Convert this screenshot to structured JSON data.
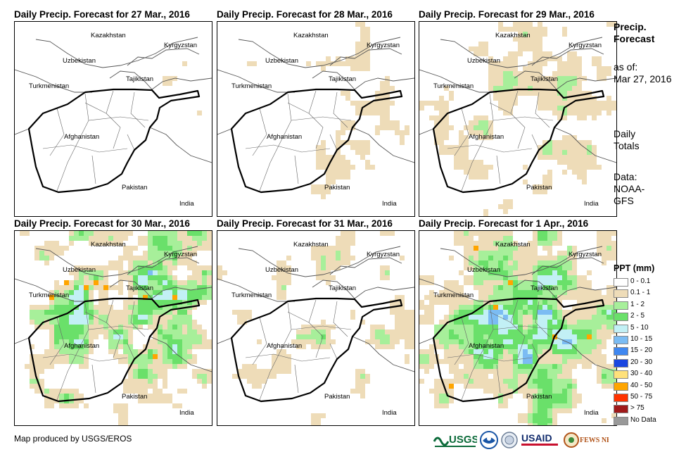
{
  "panels": [
    {
      "title": "Daily Precip. Forecast for 27 Mar., 2016",
      "precip_level": 1
    },
    {
      "title": "Daily Precip. Forecast for 28 Mar., 2016",
      "precip_level": 2
    },
    {
      "title": "Daily Precip. Forecast for 29 Mar., 2016",
      "precip_level": 3
    },
    {
      "title": "Daily Precip. Forecast for 30 Mar., 2016",
      "precip_level": 4
    },
    {
      "title": "Daily Precip. Forecast for 31 Mar., 2016",
      "precip_level": 3
    },
    {
      "title": "Daily Precip. Forecast for 1 Apr., 2016",
      "precip_level": 5
    }
  ],
  "countries": {
    "kazakhstan": "Kazakhstan",
    "kyrgyzstan": "Kyrgyzstan",
    "uzbekistan": "Uzbekistan",
    "tajikistan": "Tajikistan",
    "turkmenistan": "Turkmenistan",
    "afghanistan": "Afghanistan",
    "pakistan": "Pakistan",
    "india": "India"
  },
  "sidebar": {
    "title_line1": "Precip.",
    "title_line2": "Forecast",
    "asof_line1": "as of:",
    "asof_line2": "Mar 27, 2016",
    "totals_line1": "Daily",
    "totals_line2": "Totals",
    "data_line1": "Data:",
    "data_line2": "NOAA-",
    "data_line3": "GFS"
  },
  "legend": {
    "title": "PPT (mm)",
    "items": [
      {
        "label": "0 - 0.1",
        "color": "#ffffff"
      },
      {
        "label": "0.1 - 1",
        "color": "#eedcb8"
      },
      {
        "label": "1 - 2",
        "color": "#a7ef9a"
      },
      {
        "label": "2 - 5",
        "color": "#6ae06a"
      },
      {
        "label": "5 - 10",
        "color": "#c2f0f5"
      },
      {
        "label": "10 - 15",
        "color": "#7bbcf3"
      },
      {
        "label": "15 - 20",
        "color": "#3f87f0"
      },
      {
        "label": "20 - 30",
        "color": "#1a46e0"
      },
      {
        "label": "30 - 40",
        "color": "#ffe17a"
      },
      {
        "label": "40 - 50",
        "color": "#ffa500"
      },
      {
        "label": "50 - 75",
        "color": "#ff3300"
      },
      {
        "label": "> 75",
        "color": "#a01a1a"
      },
      {
        "label": "No Data",
        "color": "#999999"
      }
    ]
  },
  "footer": {
    "credit": "Map produced by USGS/EROS"
  },
  "logos": {
    "usgs": "USGS",
    "usaid": "USAID",
    "fewsnet": "FEWS NET"
  }
}
